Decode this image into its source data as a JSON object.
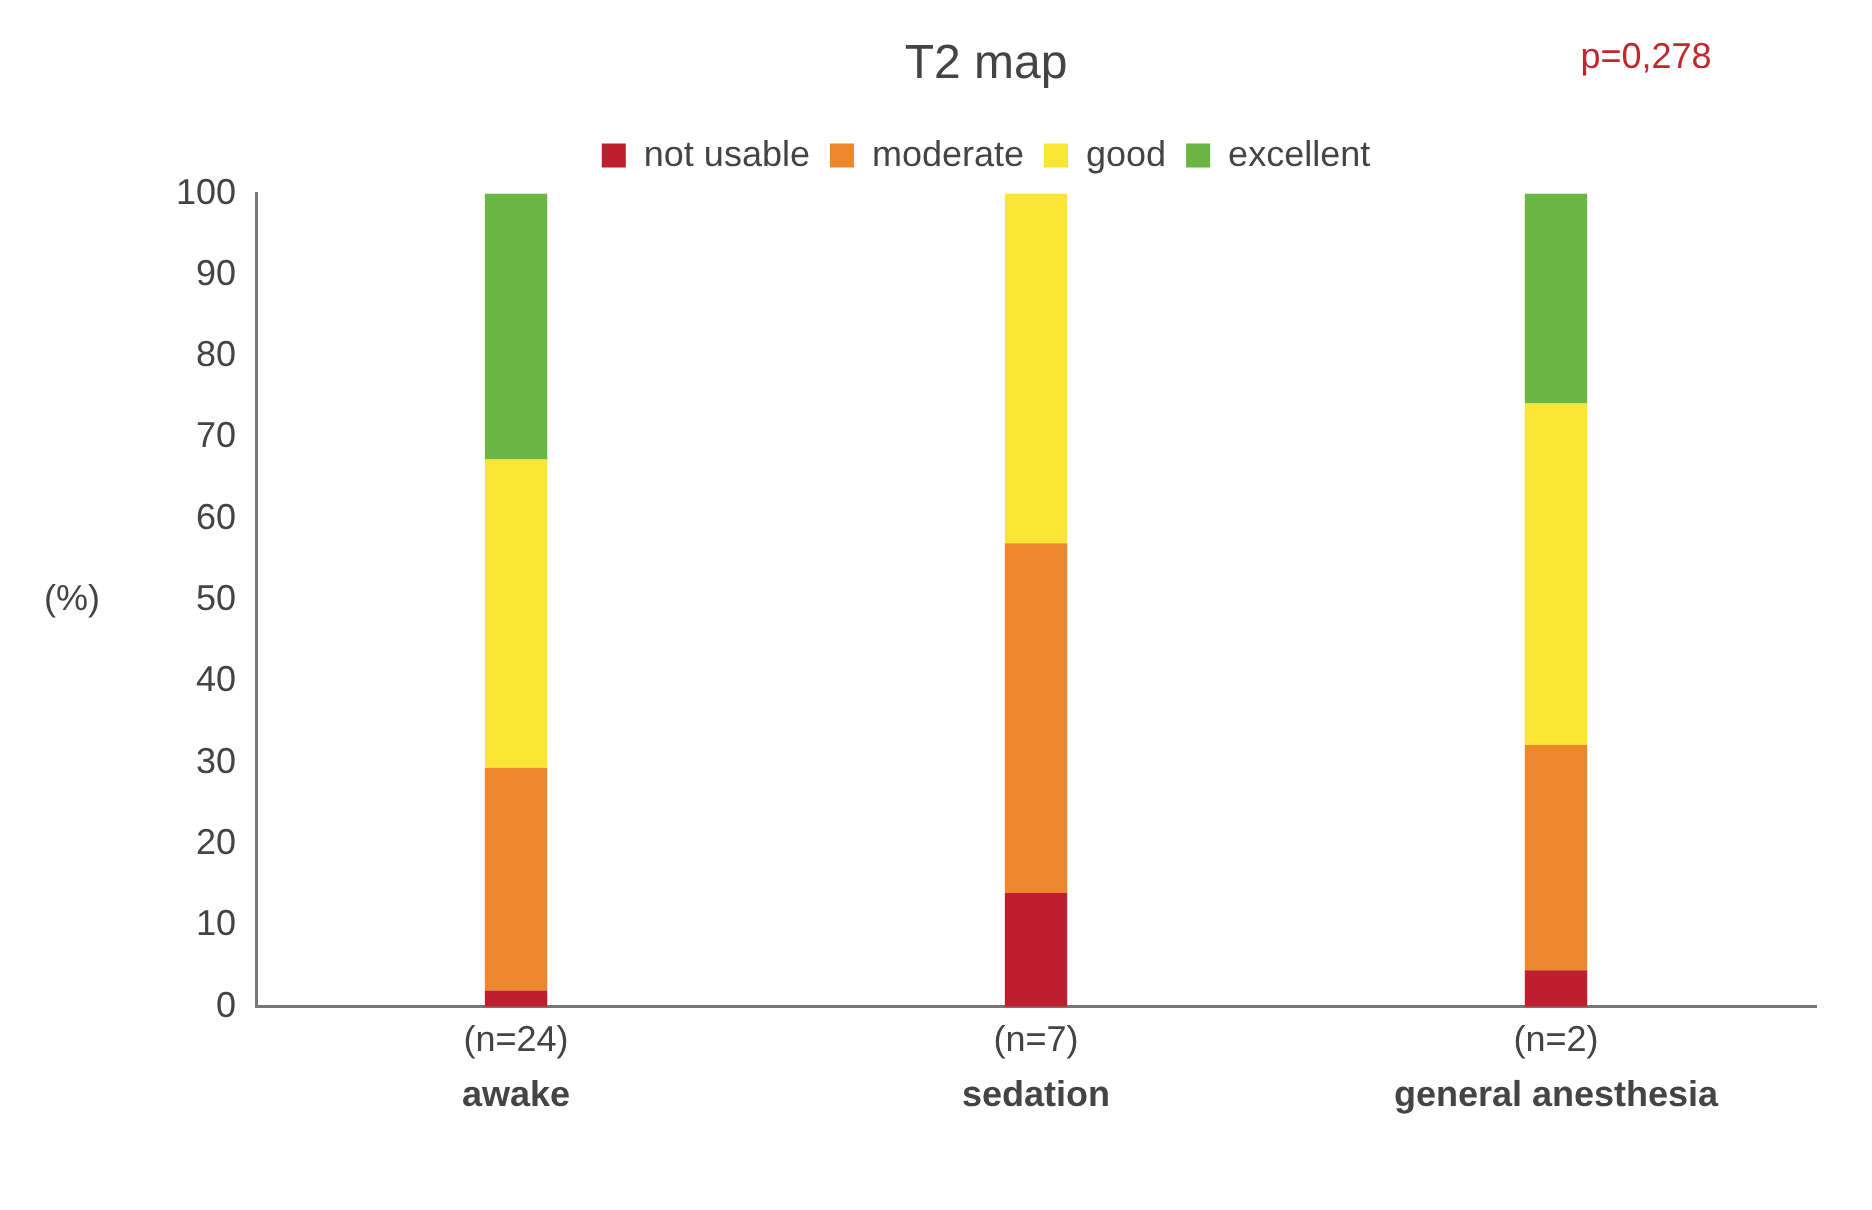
{
  "chart_data": {
    "type": "bar",
    "title": "T2 map",
    "ylabel": "(%)",
    "stacked": true,
    "legend": "top",
    "grid": false,
    "categories": [
      "awake",
      "sedation",
      "general anesthesia"
    ],
    "series": [
      {
        "name": "not usable",
        "color": "#be1e2d",
        "values": [
          2,
          14,
          4.5
        ]
      },
      {
        "name": "moderate",
        "color": "#ec872d",
        "values": [
          27.4,
          43,
          27.7
        ]
      },
      {
        "name": "good",
        "color": "#f9e633",
        "values": [
          37.9,
          43,
          42
        ]
      },
      {
        "name": "excellent",
        "color": "#6bb544",
        "values": [
          32.7,
          0,
          25.8
        ]
      }
    ],
    "ylim": [
      0,
      100
    ],
    "yticks": [
      0,
      10,
      20,
      30,
      40,
      50,
      60,
      70,
      80,
      90,
      100
    ],
    "annotations": [
      "(n=24)",
      "(n=7)",
      "(n=2)",
      "p=0,278"
    ]
  }
}
